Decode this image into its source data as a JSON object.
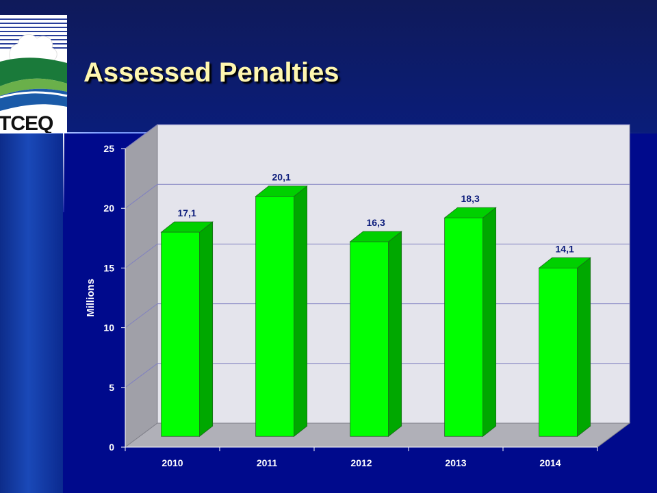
{
  "slide": {
    "title": "Assessed Penalties",
    "logo_text": "TCEQ"
  },
  "colors": {
    "bar_front": "#00ff00",
    "bar_side": "#00a800",
    "bar_top": "#00d000",
    "title": "#fff7b0",
    "data_label": "#0a1a7a"
  },
  "chart_data": {
    "type": "bar",
    "categories": [
      "2010",
      "2011",
      "2012",
      "2013",
      "2014"
    ],
    "values": [
      17.1,
      20.1,
      16.3,
      18.3,
      14.1
    ],
    "data_labels": [
      "17,1",
      "20,1",
      "16,3",
      "18,3",
      "14,1"
    ],
    "title": "",
    "xlabel": "",
    "ylabel": "Millions",
    "ylim": [
      0,
      25
    ],
    "yticks": [
      0,
      5,
      10,
      15,
      20,
      25
    ],
    "grid": true,
    "legend": "none",
    "style": "3d"
  }
}
